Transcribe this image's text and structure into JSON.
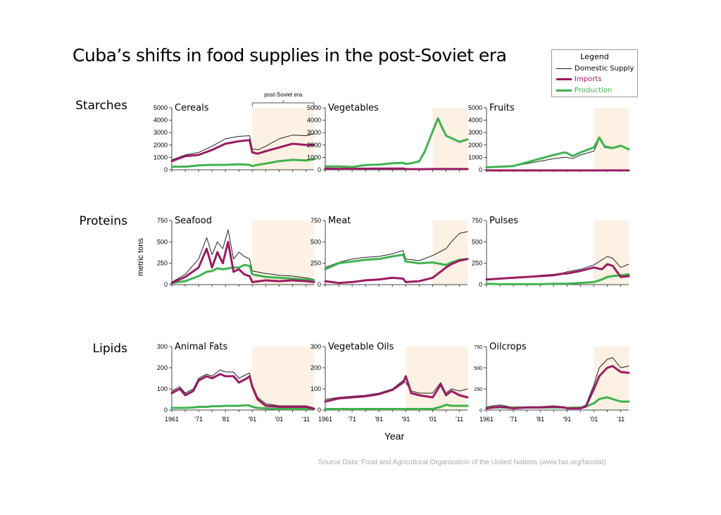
{
  "title": "Cuba’s shifts in food supplies in the post-Soviet era",
  "legend": {
    "title": "Legend",
    "entries": [
      {
        "name": "Domestic Supply",
        "color": "#222222"
      },
      {
        "name": "Imports",
        "color": "#9b1b63"
      },
      {
        "name": "Production",
        "color": "#3fb34f"
      }
    ]
  },
  "annotation": "post-Soviet era",
  "row_labels": [
    "Starches",
    "Proteins",
    "Lipids"
  ],
  "y_axis_label": "metric tons",
  "x_axis_label": "Year",
  "source": "Source Data: Food and Agricultural Organization of the United Nations (www.fao.org/faostat)",
  "colors": {
    "domestic": "#222222",
    "imports": "#9b1b63",
    "production": "#3fb34f",
    "shade": "#fdf1e3"
  },
  "chart_data": [
    {
      "type": "line",
      "title": "Cereals",
      "ylim": [
        0,
        5000
      ],
      "yticks": [
        0,
        1000,
        2000,
        3000,
        4000,
        5000
      ],
      "shade": [
        1991,
        2014
      ],
      "x": [
        1961,
        1966,
        1971,
        1976,
        1981,
        1986,
        1990,
        1991,
        1993,
        1996,
        2001,
        2006,
        2011,
        2014
      ],
      "series": [
        {
          "name": "Domestic Supply",
          "values": [
            800,
            1200,
            1400,
            1900,
            2500,
            2700,
            2750,
            1700,
            1600,
            1900,
            2500,
            2800,
            2750,
            2900
          ]
        },
        {
          "name": "Imports",
          "values": [
            700,
            1100,
            1200,
            1600,
            2100,
            2300,
            2400,
            1400,
            1300,
            1500,
            1800,
            2100,
            2000,
            2000
          ]
        },
        {
          "name": "Production",
          "values": [
            250,
            250,
            350,
            400,
            400,
            450,
            400,
            300,
            400,
            500,
            700,
            800,
            750,
            850
          ]
        }
      ]
    },
    {
      "type": "line",
      "title": "Vegetables",
      "ylim": [
        0,
        5000
      ],
      "yticks": [
        0,
        1000,
        2000,
        3000,
        4000,
        5000
      ],
      "shade": [
        2001,
        2014
      ],
      "x": [
        1961,
        1966,
        1971,
        1976,
        1981,
        1986,
        1990,
        1991,
        1993,
        1996,
        1998,
        2001,
        2003,
        2004,
        2006,
        2008,
        2011,
        2014
      ],
      "series": [
        {
          "name": "Domestic Supply",
          "values": [
            300,
            300,
            250,
            400,
            450,
            550,
            600,
            500,
            550,
            700,
            1500,
            3200,
            4200,
            3700,
            2800,
            2600,
            2300,
            2500
          ]
        },
        {
          "name": "Imports",
          "values": [
            100,
            80,
            80,
            90,
            100,
            100,
            100,
            60,
            50,
            50,
            50,
            60,
            60,
            60,
            60,
            60,
            60,
            60
          ]
        },
        {
          "name": "Production",
          "values": [
            280,
            270,
            230,
            380,
            420,
            520,
            560,
            480,
            520,
            680,
            1450,
            3100,
            4150,
            3650,
            2750,
            2550,
            2250,
            2450
          ]
        }
      ]
    },
    {
      "type": "line",
      "title": "Fruits",
      "ylim": [
        0,
        5000
      ],
      "yticks": [
        0,
        1000,
        2000,
        3000,
        4000,
        5000
      ],
      "shade": [
        2001,
        2014
      ],
      "x": [
        1961,
        1966,
        1971,
        1976,
        1981,
        1986,
        1990,
        1991,
        1993,
        1996,
        2001,
        2003,
        2005,
        2008,
        2011,
        2014
      ],
      "series": [
        {
          "name": "Domestic Supply",
          "values": [
            200,
            250,
            300,
            500,
            700,
            900,
            1000,
            1000,
            900,
            1200,
            1500,
            2500,
            1800,
            1700,
            1900,
            1600
          ]
        },
        {
          "name": "Imports",
          "values": [
            -50,
            -50,
            -50,
            -50,
            -50,
            -50,
            -50,
            -50,
            -50,
            -50,
            -50,
            -50,
            -50,
            -50,
            -50,
            -50
          ]
        },
        {
          "name": "Production",
          "values": [
            200,
            250,
            300,
            600,
            900,
            1200,
            1400,
            1350,
            1100,
            1400,
            1800,
            2600,
            1900,
            1750,
            1950,
            1650
          ]
        }
      ]
    },
    {
      "type": "line",
      "title": "Seafood",
      "ylim": [
        0,
        750
      ],
      "yticks": [
        0,
        250,
        500,
        750
      ],
      "shade": [
        1991,
        2014
      ],
      "x": [
        1961,
        1966,
        1971,
        1974,
        1976,
        1978,
        1980,
        1982,
        1984,
        1986,
        1988,
        1990,
        1991,
        1996,
        2001,
        2006,
        2011,
        2014
      ],
      "series": [
        {
          "name": "Domestic Supply",
          "values": [
            30,
            120,
            300,
            550,
            350,
            500,
            420,
            640,
            300,
            380,
            330,
            300,
            160,
            130,
            110,
            100,
            80,
            60
          ]
        },
        {
          "name": "Imports",
          "values": [
            20,
            90,
            200,
            420,
            200,
            380,
            250,
            500,
            150,
            180,
            120,
            100,
            30,
            50,
            40,
            50,
            40,
            30
          ]
        },
        {
          "name": "Production",
          "values": [
            20,
            40,
            100,
            150,
            160,
            190,
            180,
            190,
            200,
            200,
            230,
            220,
            120,
            90,
            80,
            70,
            60,
            50
          ]
        }
      ]
    },
    {
      "type": "line",
      "title": "Meat",
      "ylim": [
        0,
        750
      ],
      "yticks": [
        0,
        250,
        500,
        750
      ],
      "shade": [
        2001,
        2014
      ],
      "x": [
        1961,
        1966,
        1971,
        1976,
        1981,
        1986,
        1990,
        1991,
        1996,
        2001,
        2006,
        2008,
        2011,
        2014
      ],
      "series": [
        {
          "name": "Domestic Supply",
          "values": [
            200,
            260,
            300,
            320,
            330,
            360,
            400,
            300,
            280,
            340,
            420,
            500,
            600,
            620
          ]
        },
        {
          "name": "Imports",
          "values": [
            40,
            20,
            30,
            50,
            60,
            80,
            70,
            30,
            40,
            80,
            200,
            240,
            280,
            300
          ]
        },
        {
          "name": "Production",
          "values": [
            180,
            250,
            270,
            290,
            300,
            330,
            350,
            270,
            250,
            260,
            230,
            260,
            290,
            300
          ]
        }
      ]
    },
    {
      "type": "line",
      "title": "Pulses",
      "ylim": [
        0,
        750
      ],
      "yticks": [
        0,
        250,
        500,
        750
      ],
      "shade": [
        2001,
        2014
      ],
      "x": [
        1961,
        1966,
        1971,
        1976,
        1981,
        1986,
        1990,
        1991,
        1996,
        2001,
        2004,
        2006,
        2008,
        2011,
        2014
      ],
      "series": [
        {
          "name": "Domestic Supply",
          "values": [
            70,
            70,
            80,
            90,
            110,
            120,
            140,
            150,
            180,
            230,
            290,
            330,
            310,
            200,
            240
          ]
        },
        {
          "name": "Imports",
          "values": [
            60,
            70,
            80,
            90,
            100,
            110,
            130,
            130,
            160,
            200,
            180,
            240,
            220,
            90,
            100
          ]
        },
        {
          "name": "Production",
          "values": [
            10,
            5,
            5,
            5,
            5,
            10,
            10,
            10,
            20,
            30,
            60,
            90,
            100,
            110,
            120
          ]
        }
      ]
    },
    {
      "type": "line",
      "title": "Animal Fats",
      "ylim": [
        0,
        300
      ],
      "yticks": [
        0,
        100,
        200,
        300
      ],
      "shade": [
        1991,
        2014
      ],
      "x": [
        1961,
        1964,
        1966,
        1969,
        1971,
        1974,
        1976,
        1979,
        1981,
        1984,
        1986,
        1989,
        1990,
        1991,
        1993,
        1996,
        2001,
        2006,
        2011,
        2014
      ],
      "series": [
        {
          "name": "Domestic Supply",
          "values": [
            90,
            110,
            80,
            100,
            150,
            170,
            160,
            190,
            180,
            180,
            150,
            170,
            175,
            120,
            60,
            30,
            20,
            20,
            20,
            10
          ]
        },
        {
          "name": "Imports",
          "values": [
            80,
            100,
            70,
            90,
            140,
            160,
            150,
            170,
            160,
            160,
            130,
            150,
            160,
            110,
            50,
            20,
            15,
            15,
            15,
            5
          ]
        },
        {
          "name": "Production",
          "values": [
            10,
            10,
            10,
            12,
            15,
            15,
            18,
            18,
            20,
            20,
            20,
            22,
            22,
            15,
            10,
            8,
            5,
            5,
            5,
            5
          ]
        }
      ]
    },
    {
      "type": "line",
      "title": "Vegetable Oils",
      "ylim": [
        0,
        300
      ],
      "yticks": [
        0,
        100,
        200,
        300
      ],
      "shade": [
        1991,
        2014
      ],
      "x": [
        1961,
        1966,
        1971,
        1976,
        1981,
        1986,
        1990,
        1991,
        1993,
        1996,
        2001,
        2004,
        2006,
        2008,
        2011,
        2014
      ],
      "series": [
        {
          "name": "Domestic Supply",
          "values": [
            50,
            60,
            65,
            70,
            80,
            100,
            140,
            130,
            90,
            80,
            80,
            130,
            80,
            100,
            90,
            100
          ]
        },
        {
          "name": "Imports",
          "values": [
            40,
            55,
            60,
            65,
            75,
            95,
            130,
            160,
            80,
            70,
            60,
            120,
            70,
            90,
            70,
            60
          ]
        },
        {
          "name": "Production",
          "values": [
            5,
            5,
            5,
            5,
            5,
            5,
            5,
            5,
            5,
            5,
            5,
            15,
            25,
            20,
            20,
            20
          ]
        }
      ]
    },
    {
      "type": "line",
      "title": "Oilcrops",
      "ylim": [
        0,
        750
      ],
      "yticks": [
        0,
        250,
        500,
        750
      ],
      "shade": [
        2001,
        2014
      ],
      "x": [
        1961,
        1966,
        1971,
        1976,
        1981,
        1986,
        1990,
        1991,
        1996,
        1998,
        2001,
        2003,
        2006,
        2008,
        2011,
        2014
      ],
      "series": [
        {
          "name": "Domestic Supply",
          "values": [
            40,
            60,
            30,
            40,
            40,
            50,
            40,
            30,
            30,
            60,
            300,
            500,
            600,
            620,
            500,
            520
          ]
        },
        {
          "name": "Imports",
          "values": [
            20,
            40,
            20,
            30,
            30,
            40,
            30,
            20,
            20,
            40,
            250,
            400,
            500,
            520,
            450,
            440
          ]
        },
        {
          "name": "Production",
          "values": [
            30,
            30,
            30,
            30,
            30,
            30,
            30,
            25,
            30,
            40,
            80,
            130,
            150,
            130,
            100,
            100
          ]
        }
      ]
    }
  ],
  "x_ticks": [
    {
      "year": 1961,
      "label": "1961"
    },
    {
      "year": 1971,
      "label": "'71"
    },
    {
      "year": 1981,
      "label": "'81"
    },
    {
      "year": 1991,
      "label": "'91"
    },
    {
      "year": 2001,
      "label": "'01"
    },
    {
      "year": 2011,
      "label": "'11"
    }
  ],
  "x_range": [
    1961,
    2014
  ]
}
